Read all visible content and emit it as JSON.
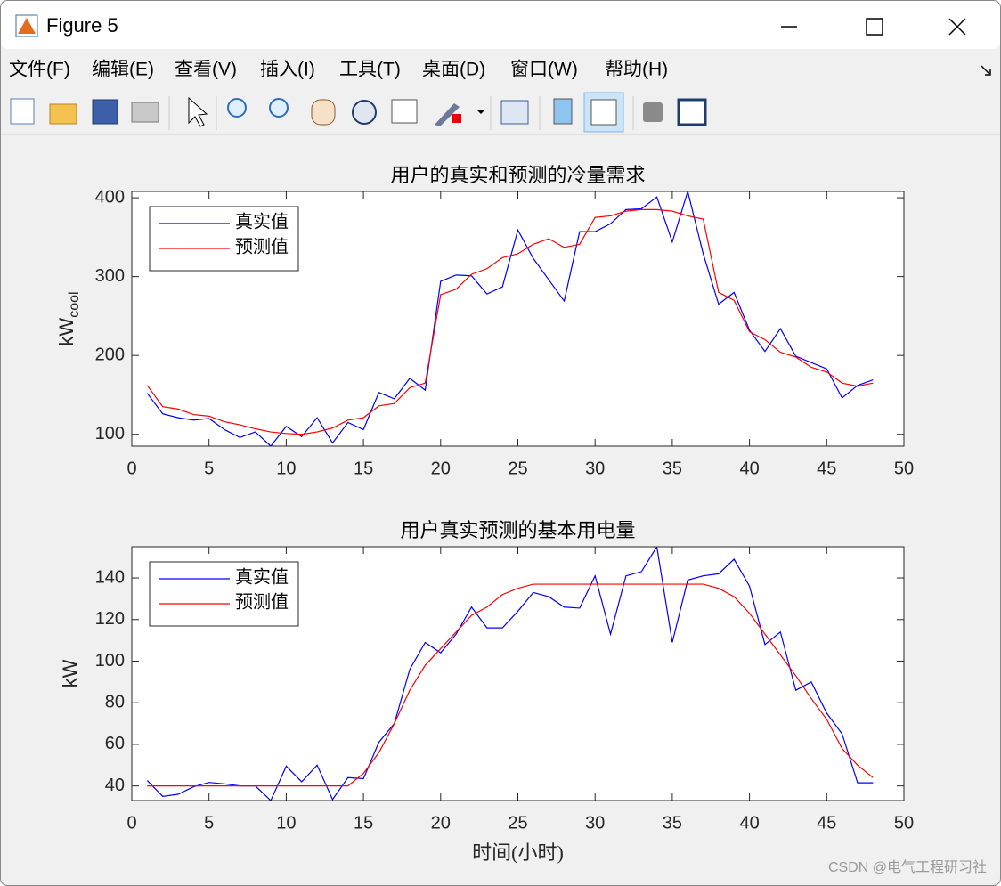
{
  "window": {
    "title": "Figure 5",
    "menu": [
      "文件(F)",
      "编辑(E)",
      "查看(V)",
      "插入(I)",
      "工具(T)",
      "桌面(D)",
      "窗口(W)",
      "帮助(H)"
    ]
  },
  "watermark": "CSDN @电气工程研习社",
  "chart_data": [
    {
      "type": "line",
      "title": "用户的真实和预测的冷量需求",
      "ylabel": "kW",
      "ylabel_sub": "cool",
      "x": [
        1,
        2,
        3,
        4,
        5,
        6,
        7,
        8,
        9,
        10,
        11,
        12,
        13,
        14,
        15,
        16,
        17,
        18,
        19,
        20,
        21,
        22,
        23,
        24,
        25,
        26,
        27,
        28,
        29,
        30,
        31,
        32,
        33,
        34,
        35,
        36,
        37,
        38,
        39,
        40,
        41,
        42,
        43,
        44,
        45,
        46,
        47,
        48
      ],
      "series": [
        {
          "name": "真实值",
          "color": "#0000ff",
          "values": [
            152,
            126,
            121,
            118,
            120,
            106,
            96,
            103,
            85,
            110,
            97,
            121,
            89,
            115,
            106,
            153,
            145,
            171,
            156,
            294,
            302,
            301,
            278,
            287,
            359,
            323,
            296,
            269,
            357,
            357,
            367,
            385,
            386,
            401,
            344,
            408,
            329,
            265,
            280,
            232,
            205,
            234,
            199,
            191,
            183,
            146,
            162,
            169
          ]
        },
        {
          "name": "预测值",
          "color": "#ff0000",
          "values": [
            162,
            135,
            132,
            125,
            123,
            116,
            112,
            107,
            103,
            101,
            100,
            103,
            108,
            118,
            121,
            136,
            139,
            159,
            165,
            277,
            284,
            303,
            310,
            324,
            329,
            341,
            348,
            337,
            341,
            375,
            377,
            383,
            385,
            385,
            383,
            377,
            373,
            280,
            270,
            230,
            220,
            204,
            198,
            185,
            179,
            165,
            161,
            165
          ]
        }
      ],
      "xlim": [
        0,
        50
      ],
      "xticks": [
        0,
        5,
        10,
        15,
        20,
        25,
        30,
        35,
        40,
        45,
        50
      ],
      "ylim": [
        85,
        408
      ],
      "yticks": [
        100,
        200,
        300,
        400
      ],
      "grid": false,
      "legend": "upper left"
    },
    {
      "type": "line",
      "title": "用户真实预测的基本用电量",
      "ylabel": "kW",
      "xlabel": "时间(小时)",
      "x": [
        1,
        2,
        3,
        4,
        5,
        6,
        7,
        8,
        9,
        10,
        11,
        12,
        13,
        14,
        15,
        16,
        17,
        18,
        19,
        20,
        21,
        22,
        23,
        24,
        25,
        26,
        27,
        28,
        29,
        30,
        31,
        32,
        33,
        34,
        35,
        36,
        37,
        38,
        39,
        40,
        41,
        42,
        43,
        44,
        45,
        46,
        47,
        48
      ],
      "series": [
        {
          "name": "真实值",
          "color": "#0000ff",
          "values": [
            42.6,
            35,
            36,
            39.6,
            41.7,
            41,
            40,
            40,
            33,
            49.5,
            42,
            50,
            33.5,
            44,
            43.5,
            61,
            70,
            96,
            109,
            104,
            113,
            126,
            116,
            116,
            124,
            133,
            131,
            126,
            125.5,
            141,
            113,
            141,
            143,
            155,
            109,
            139,
            141,
            142,
            149,
            136,
            108,
            114,
            86,
            90,
            75,
            65,
            41.5,
            41.5
          ]
        },
        {
          "name": "预测值",
          "color": "#ff0000",
          "values": [
            40,
            40,
            40,
            40,
            40,
            40,
            40,
            40,
            40,
            40,
            40,
            40,
            40,
            40,
            46,
            56,
            70,
            86,
            98,
            106,
            114,
            122,
            126,
            132,
            135,
            137,
            137,
            137,
            137,
            137,
            137,
            137,
            137,
            137,
            137,
            137,
            137,
            135,
            131,
            123,
            113,
            103,
            93,
            82,
            72,
            58,
            50,
            44
          ]
        }
      ],
      "xlim": [
        0,
        50
      ],
      "xticks": [
        0,
        5,
        10,
        15,
        20,
        25,
        30,
        35,
        40,
        45,
        50
      ],
      "ylim": [
        33,
        155
      ],
      "yticks": [
        40,
        60,
        80,
        100,
        120,
        140
      ],
      "grid": false,
      "legend": "upper left"
    }
  ]
}
